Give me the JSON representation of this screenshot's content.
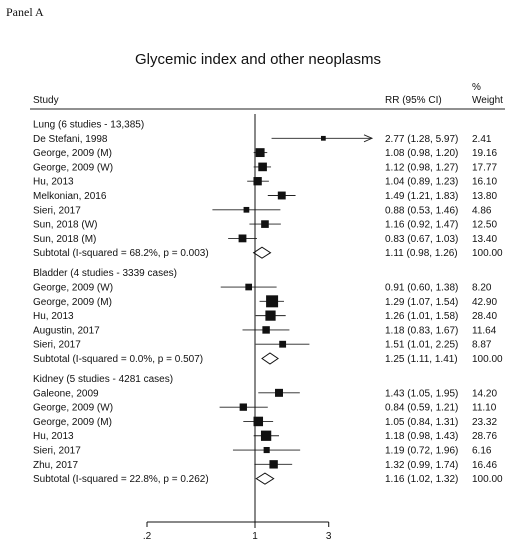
{
  "panel_label": "Panel A",
  "chart_data": {
    "type": "forest",
    "title": "Glycemic index and other neoplasms",
    "columns": {
      "study": "Study",
      "ci": "RR (95% CI)",
      "weight_pct": "%",
      "weight": "Weight"
    },
    "x_scale": "log",
    "xlim": [
      0.2,
      3.3
    ],
    "reference_line": 1,
    "x_ticks": [
      {
        "value": 0.2,
        "label": ".2"
      },
      {
        "value": 1,
        "label": "1"
      },
      {
        "value": 3,
        "label": "3"
      }
    ],
    "groups": [
      {
        "label": "Lung (6 studies - 13,385)",
        "studies": [
          {
            "name": "De Stefani, 1998",
            "rr": 2.77,
            "lo": 1.28,
            "hi": 5.97,
            "ci": "2.77 (1.28, 5.97)",
            "weight": "2.41",
            "w": 2.41,
            "arrow": true
          },
          {
            "name": "George, 2009 (M)",
            "rr": 1.08,
            "lo": 0.98,
            "hi": 1.2,
            "ci": "1.08 (0.98, 1.20)",
            "weight": "19.16",
            "w": 19.16
          },
          {
            "name": "George, 2009 (W)",
            "rr": 1.12,
            "lo": 0.98,
            "hi": 1.27,
            "ci": "1.12 (0.98, 1.27)",
            "weight": "17.77",
            "w": 17.77
          },
          {
            "name": "Hu, 2013",
            "rr": 1.04,
            "lo": 0.89,
            "hi": 1.23,
            "ci": "1.04 (0.89, 1.23)",
            "weight": "16.10",
            "w": 16.1
          },
          {
            "name": "Melkonian, 2016",
            "rr": 1.49,
            "lo": 1.21,
            "hi": 1.83,
            "ci": "1.49 (1.21, 1.83)",
            "weight": "13.80",
            "w": 13.8
          },
          {
            "name": "Sieri, 2017",
            "rr": 0.88,
            "lo": 0.53,
            "hi": 1.46,
            "ci": "0.88 (0.53, 1.46)",
            "weight": "4.86",
            "w": 4.86
          },
          {
            "name": "Sun, 2018 (W)",
            "rr": 1.16,
            "lo": 0.92,
            "hi": 1.47,
            "ci": "1.16 (0.92, 1.47)",
            "weight": "12.50",
            "w": 12.5
          },
          {
            "name": "Sun, 2018 (M)",
            "rr": 0.83,
            "lo": 0.67,
            "hi": 1.03,
            "ci": "0.83 (0.67, 1.03)",
            "weight": "13.40",
            "w": 13.4
          }
        ],
        "subtotal": {
          "label": "Subtotal  (I-squared = 68.2%, p = 0.003)",
          "rr": 1.11,
          "lo": 0.98,
          "hi": 1.26,
          "ci": "1.11 (0.98, 1.26)",
          "weight": "100.00"
        }
      },
      {
        "label": "Bladder (4 studies - 3339 cases)",
        "studies": [
          {
            "name": "George, 2009 (W)",
            "rr": 0.91,
            "lo": 0.6,
            "hi": 1.38,
            "ci": "0.91 (0.60, 1.38)",
            "weight": "8.20",
            "w": 8.2
          },
          {
            "name": "George, 2009 (M)",
            "rr": 1.29,
            "lo": 1.07,
            "hi": 1.54,
            "ci": "1.29 (1.07, 1.54)",
            "weight": "42.90",
            "w": 42.9
          },
          {
            "name": "Hu, 2013",
            "rr": 1.26,
            "lo": 1.01,
            "hi": 1.58,
            "ci": "1.26 (1.01, 1.58)",
            "weight": "28.40",
            "w": 28.4
          },
          {
            "name": "Augustin, 2017",
            "rr": 1.18,
            "lo": 0.83,
            "hi": 1.67,
            "ci": "1.18 (0.83, 1.67)",
            "weight": "11.64",
            "w": 11.64
          },
          {
            "name": "Sieri, 2017",
            "rr": 1.51,
            "lo": 1.01,
            "hi": 2.25,
            "ci": "1.51 (1.01, 2.25)",
            "weight": "8.87",
            "w": 8.87
          }
        ],
        "subtotal": {
          "label": "Subtotal  (I-squared = 0.0%, p = 0.507)",
          "rr": 1.25,
          "lo": 1.11,
          "hi": 1.41,
          "ci": "1.25 (1.11, 1.41)",
          "weight": "100.00"
        }
      },
      {
        "label": "Kidney (5 studies - 4281 cases)",
        "studies": [
          {
            "name": "Galeone, 2009",
            "rr": 1.43,
            "lo": 1.05,
            "hi": 1.95,
            "ci": "1.43 (1.05, 1.95)",
            "weight": "14.20",
            "w": 14.2
          },
          {
            "name": "George, 2009 (W)",
            "rr": 0.84,
            "lo": 0.59,
            "hi": 1.21,
            "ci": "0.84 (0.59, 1.21)",
            "weight": "11.10",
            "w": 11.1
          },
          {
            "name": "George, 2009 (M)",
            "rr": 1.05,
            "lo": 0.84,
            "hi": 1.31,
            "ci": "1.05 (0.84, 1.31)",
            "weight": "23.32",
            "w": 23.32
          },
          {
            "name": "Hu, 2013",
            "rr": 1.18,
            "lo": 0.98,
            "hi": 1.43,
            "ci": "1.18 (0.98, 1.43)",
            "weight": "28.76",
            "w": 28.76
          },
          {
            "name": "Sieri, 2017",
            "rr": 1.19,
            "lo": 0.72,
            "hi": 1.96,
            "ci": "1.19 (0.72, 1.96)",
            "weight": "6.16",
            "w": 6.16
          },
          {
            "name": "Zhu, 2017",
            "rr": 1.32,
            "lo": 0.99,
            "hi": 1.74,
            "ci": "1.32 (0.99, 1.74)",
            "weight": "16.46",
            "w": 16.46
          }
        ],
        "subtotal": {
          "label": "Subtotal  (I-squared = 22.8%, p = 0.262)",
          "rr": 1.16,
          "lo": 1.02,
          "hi": 1.32,
          "ci": "1.16 (1.02, 1.32)",
          "weight": "100.00"
        }
      }
    ]
  }
}
